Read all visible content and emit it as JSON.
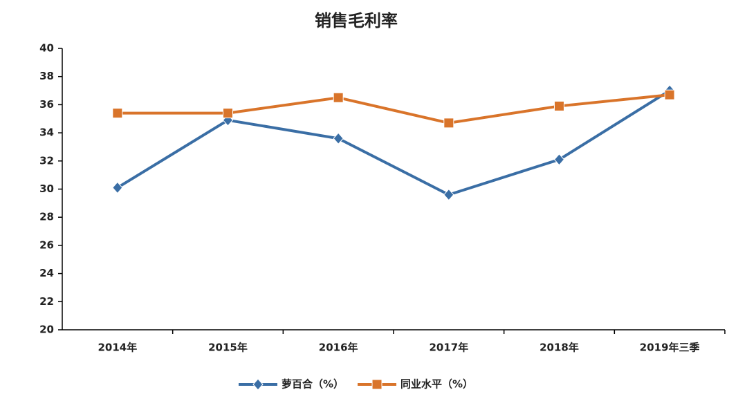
{
  "chart_data": {
    "type": "line",
    "title": "销售毛利率",
    "categories": [
      "2014年",
      "2015年",
      "2016年",
      "2017年",
      "2018年",
      "2019年三季"
    ],
    "series": [
      {
        "name": "萝百合（%）",
        "color": "#3a6ea5",
        "marker": "diamond",
        "values": [
          30.1,
          34.9,
          33.6,
          29.6,
          32.1,
          37.0
        ]
      },
      {
        "name": "同业水平（%）",
        "color": "#d9742a",
        "marker": "square",
        "values": [
          35.4,
          35.4,
          36.5,
          34.7,
          35.9,
          36.7
        ]
      }
    ],
    "ylim": [
      20,
      40
    ],
    "yticks": [
      20,
      22,
      24,
      26,
      28,
      30,
      32,
      34,
      36,
      38,
      40
    ],
    "grid": false,
    "legend": "bottom"
  }
}
